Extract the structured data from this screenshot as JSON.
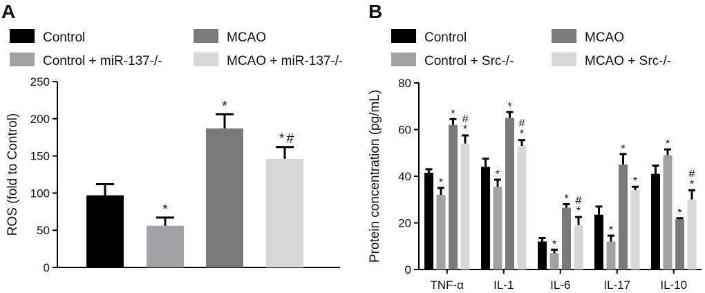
{
  "chart_data": [
    {
      "panel": "A",
      "type": "bar",
      "ylabel": "ROS (fold to Control)",
      "ylim": [
        0,
        250
      ],
      "yticks": [
        0,
        50,
        100,
        150,
        200,
        250
      ],
      "legend": [
        {
          "name": "Control",
          "color": "#000000"
        },
        {
          "name": "MCAO",
          "color": "#7a7a7a"
        },
        {
          "name": "Control + miR-137-/-",
          "color": "#a1a1a6"
        },
        {
          "name": "MCAO + miR-137-/-",
          "color": "#d7d7d7"
        }
      ],
      "bars": [
        {
          "series": "Control",
          "value": 97,
          "error": 15,
          "annotation": "",
          "color": "#000000"
        },
        {
          "series": "Control + miR-137-/-",
          "value": 56,
          "error": 11,
          "annotation": "*",
          "color": "#a1a1a6"
        },
        {
          "series": "MCAO",
          "value": 187,
          "error": 19,
          "annotation": "*",
          "color": "#7a7a7a"
        },
        {
          "series": "MCAO + miR-137-/-",
          "value": 146,
          "error": 16,
          "annotation": "*#",
          "color": "#d7d7d7"
        }
      ]
    },
    {
      "panel": "B",
      "type": "bar",
      "ylabel": "Protein concentration (pg/mL)",
      "ylim": [
        0,
        80
      ],
      "yticks": [
        0,
        20,
        40,
        60,
        80
      ],
      "categories": [
        "TNF-α",
        "IL-1",
        "IL-6",
        "IL-17",
        "IL-10"
      ],
      "legend": [
        {
          "name": "Control",
          "color": "#000000"
        },
        {
          "name": "MCAO",
          "color": "#7a7a7a"
        },
        {
          "name": "Control + Src-/-",
          "color": "#a1a1a6"
        },
        {
          "name": "MCAO + Src-/-",
          "color": "#d7d7d7"
        }
      ],
      "series": [
        {
          "name": "Control",
          "color": "#000000",
          "values": [
            41.5,
            44,
            12,
            23.5,
            41
          ],
          "errors": [
            1.5,
            3.5,
            1.5,
            3.5,
            3.5
          ],
          "annotations": [
            "",
            "",
            "",
            "",
            ""
          ]
        },
        {
          "name": "Control + Src-/-",
          "color": "#a1a1a6",
          "values": [
            32,
            35.5,
            7,
            12,
            49
          ],
          "errors": [
            3,
            3,
            1.5,
            2.5,
            2.5
          ],
          "annotations": [
            "*",
            "*",
            "*",
            "*",
            "*"
          ]
        },
        {
          "name": "MCAO",
          "color": "#7a7a7a",
          "values": [
            62,
            65,
            26.5,
            45,
            21.5
          ],
          "errors": [
            2.5,
            2.5,
            1.5,
            4.5,
            0.5
          ],
          "annotations": [
            "*",
            "*",
            "*",
            "*",
            "*"
          ]
        },
        {
          "name": "MCAO + Src-/-",
          "color": "#d7d7d7",
          "values": [
            54,
            53,
            19,
            34,
            30
          ],
          "errors": [
            3.5,
            2.5,
            3.5,
            1.5,
            4
          ],
          "annotations": [
            "*#",
            "*#",
            "*#",
            "*",
            "*#"
          ]
        }
      ]
    }
  ],
  "panels": {
    "a_label": "A",
    "b_label": "B"
  }
}
